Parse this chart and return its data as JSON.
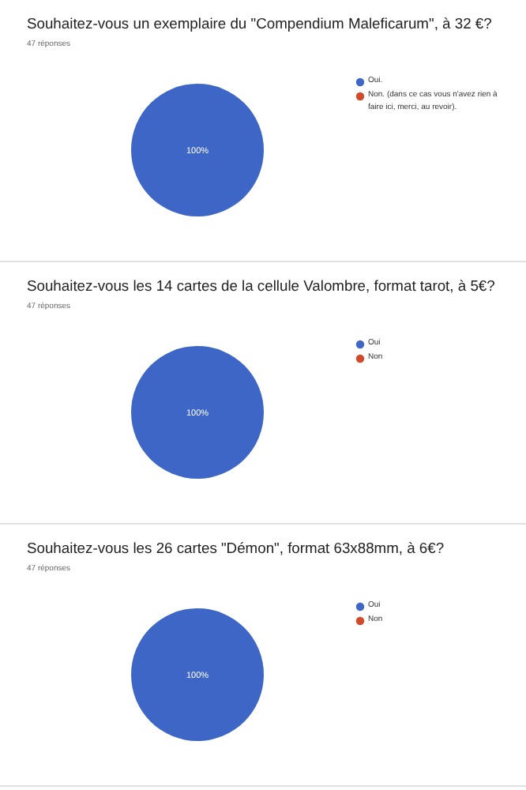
{
  "chart_data": [
    {
      "type": "pie",
      "title": "Souhaitez-vous un exemplaire du \"Compendium Maleficarum\", à 32 €?",
      "subtitle": "47 réponses",
      "categories": [
        "Oui.",
        "Non. (dans ce cas vous n'avez rien à faire ici, merci, au revoir)."
      ],
      "values": [
        100,
        0
      ],
      "value_labels": [
        "100%",
        null
      ],
      "colors": [
        "#3d66c7",
        "#d4482a"
      ],
      "legend": "right"
    },
    {
      "type": "pie",
      "title": "Souhaitez-vous les 14 cartes de la cellule Valombre, format tarot, à 5€?",
      "subtitle": "47 réponses",
      "categories": [
        "Oui",
        "Non"
      ],
      "values": [
        100,
        0
      ],
      "value_labels": [
        "100%",
        null
      ],
      "colors": [
        "#3d66c7",
        "#d4482a"
      ],
      "legend": "right"
    },
    {
      "type": "pie",
      "title": "Souhaitez-vous les 26 cartes \"Démon\", format 63x88mm, à 6€?",
      "subtitle": "47 réponses",
      "categories": [
        "Oui",
        "Non"
      ],
      "values": [
        100,
        0
      ],
      "value_labels": [
        "100%",
        null
      ],
      "colors": [
        "#3d66c7",
        "#d4482a"
      ],
      "legend": "right"
    }
  ]
}
